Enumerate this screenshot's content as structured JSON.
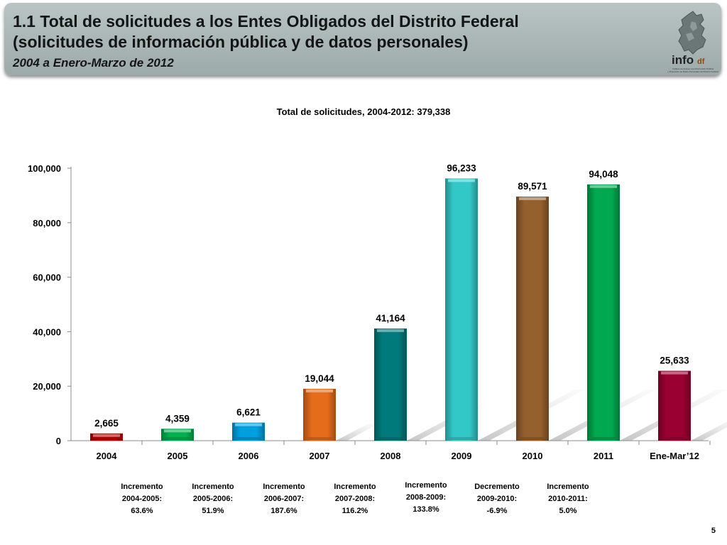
{
  "header": {
    "title_line1": "1.1 Total de solicitudes a los Entes Obligados del Distrito Federal",
    "title_line2": "(solicitudes de información pública y de datos personales)",
    "subtitle": "2004 a Enero-Marzo de 2012",
    "logo_text": "info",
    "logo_suffix": "df",
    "logo_caption_line1": "Instituto de Acceso a la Información Pública",
    "logo_caption_line2": "y Protección de Datos Personales del Distrito Federal"
  },
  "chart_data": {
    "type": "bar",
    "title": "Total de solicitudes, 2004-2012: 379,338",
    "xlabel": "",
    "ylabel": "",
    "ylim": [
      0,
      100000
    ],
    "yticks": [
      0,
      20000,
      40000,
      60000,
      80000,
      100000
    ],
    "ytick_labels": [
      "0",
      "20,000",
      "40,000",
      "60,000",
      "80,000",
      "100,000"
    ],
    "grid": false,
    "legend": "none",
    "categories": [
      "2004",
      "2005",
      "2006",
      "2007",
      "2008",
      "2009",
      "2010",
      "2011",
      "Ene-Mar’12"
    ],
    "values": [
      2665,
      4359,
      6621,
      19044,
      41164,
      96233,
      89571,
      94048,
      25633
    ],
    "value_labels": [
      "2,665",
      "4,359",
      "6,621",
      "19,044",
      "41,164",
      "96,233",
      "89,571",
      "94,048",
      "25,633"
    ],
    "colors": [
      "#c00000",
      "#00b050",
      "#00a0e0",
      "#e46c1b",
      "#007a7a",
      "#33c8c8",
      "#94602e",
      "#00a94f",
      "#9b0032"
    ]
  },
  "notes": [
    {
      "l1": "Incremento",
      "l2": "2004-2005:",
      "l3": "63.6%"
    },
    {
      "l1": "Incremento",
      "l2": "2005-2006:",
      "l3": "51.9%"
    },
    {
      "l1": "Incremento",
      "l2": "2006-2007:",
      "l3": "187.6%"
    },
    {
      "l1": "Incremento",
      "l2": "2007-2008:",
      "l3": "116.2%"
    },
    {
      "l1": "Incremento",
      "l2": "2008-2009:",
      "l3": "133.8%"
    },
    {
      "l1": "Decremento",
      "l2": "2009-2010:",
      "l3": "-6.9%"
    },
    {
      "l1": "Incremento",
      "l2": "2010-2011:",
      "l3": "5.0%"
    }
  ],
  "page_number": "5"
}
